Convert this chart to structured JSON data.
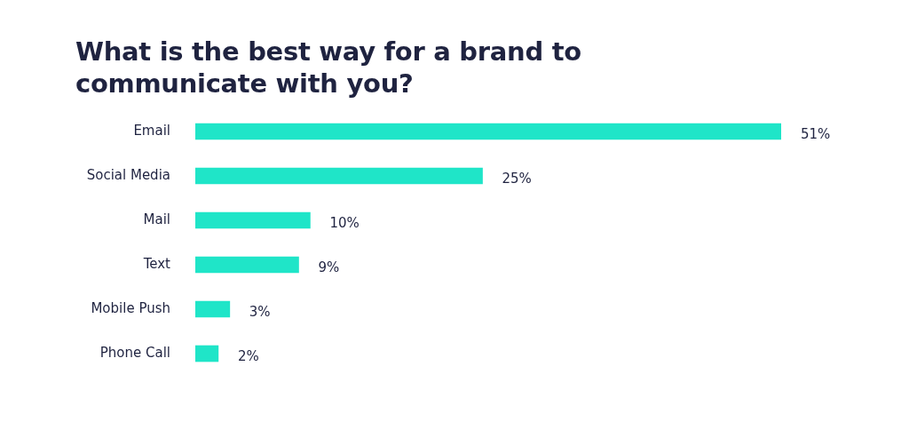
{
  "chart_data": {
    "type": "bar",
    "orientation": "horizontal",
    "title": "What is the best way for a brand to communicate with you?",
    "categories": [
      "Email",
      "Social Media",
      "Mail",
      "Text",
      "Mobile Push",
      "Phone Call"
    ],
    "values": [
      51,
      25,
      10,
      9,
      3,
      2
    ],
    "value_labels": [
      "51%",
      "25%",
      "10%",
      "9%",
      "3%",
      "2%"
    ],
    "color": "#1fe5c8",
    "legend": false
  }
}
